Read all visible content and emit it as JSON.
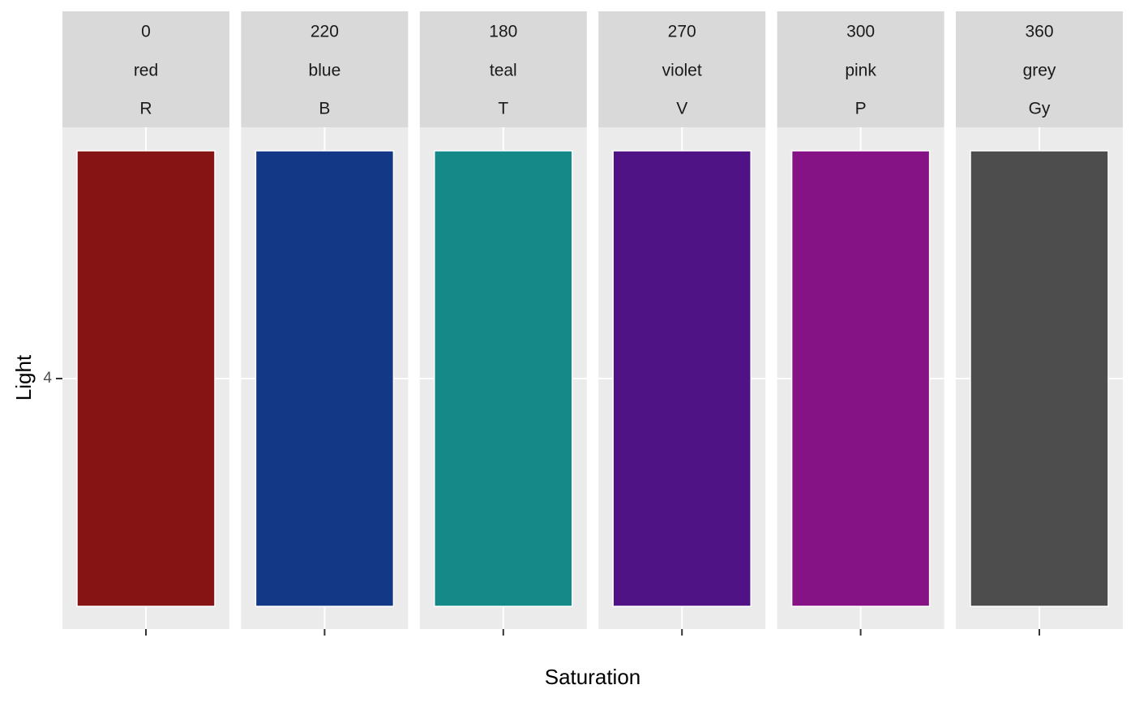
{
  "chart_data": {
    "type": "bar",
    "xlabel": "Saturation",
    "ylabel": "Light",
    "y_ticks": [
      "4"
    ],
    "grid": true,
    "legend": "none",
    "panels": [
      {
        "strip": [
          "0",
          "red",
          "R"
        ],
        "fill": "#871414"
      },
      {
        "strip": [
          "220",
          "blue",
          "B"
        ],
        "fill": "#133885"
      },
      {
        "strip": [
          "180",
          "teal",
          "T"
        ],
        "fill": "#148987"
      },
      {
        "strip": [
          "270",
          "violet",
          "V"
        ],
        "fill": "#4f1386"
      },
      {
        "strip": [
          "300",
          "pink",
          "P"
        ],
        "fill": "#861386"
      },
      {
        "strip": [
          "360",
          "grey",
          "Gy"
        ],
        "fill": "#4d4d4d"
      }
    ],
    "colors": {
      "panel_background": "#ebebeb",
      "strip_background": "#d9d9d9",
      "grid": "#ffffff",
      "tick": "#333333"
    }
  }
}
